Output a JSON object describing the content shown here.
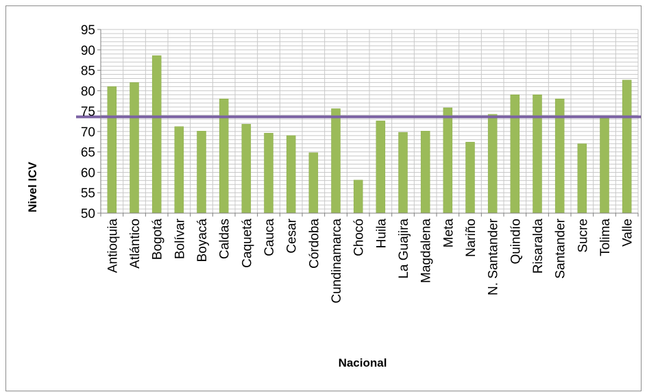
{
  "chart_data": {
    "type": "bar",
    "title": "",
    "xlabel": "Nacional",
    "ylabel": "Nivel ICV",
    "ylim": [
      50,
      95
    ],
    "y_major_ticks": [
      50,
      55,
      60,
      65,
      70,
      75,
      80,
      85,
      90,
      95
    ],
    "y_minor_step": 1,
    "grid": true,
    "categories": [
      "Antioquia",
      "Atlántico",
      "Bogotá",
      "Bolívar",
      "Boyacá",
      "Caldas",
      "Caquetá",
      "Cauca",
      "Cesar",
      "Córdoba",
      "Cundinamarca",
      "Chocó",
      "Huila",
      "La Guajira",
      "Magdalena",
      "Meta",
      "Nariño",
      "N. Santander",
      "Quindío",
      "Risaralda",
      "Santander",
      "Sucre",
      "Tolima",
      "Valle"
    ],
    "values": [
      81,
      82,
      88.6,
      71.2,
      70.1,
      78,
      71.8,
      69.6,
      69,
      64.8,
      75.6,
      58.1,
      72.6,
      69.8,
      70.1,
      75.8,
      67.4,
      74.2,
      79,
      79,
      78,
      67,
      73.4,
      82.6
    ],
    "reference_line": {
      "value": 73.6,
      "color": "#7b62a3"
    },
    "colors": {
      "bar": "#9bbb59",
      "bar_edge": "#8aaa48",
      "grid": "#c8c8c8",
      "axis": "#7f7f7f"
    }
  }
}
